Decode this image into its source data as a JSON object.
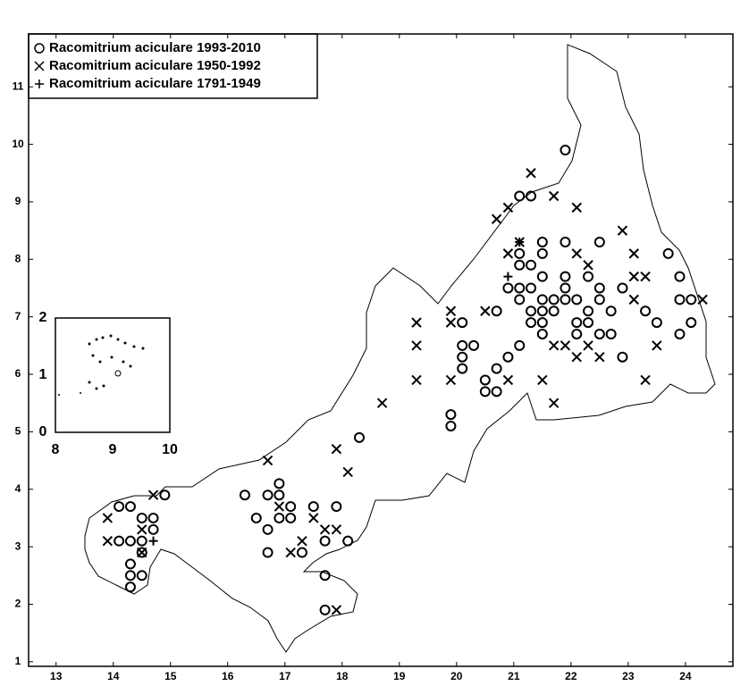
{
  "chart_data": [
    {
      "type": "scatter",
      "legend": "upper left",
      "xlim": [
        12.52,
        24.83
      ],
      "ylim": [
        0.92,
        11.92
      ],
      "xticks": [
        13,
        14,
        15,
        16,
        17,
        18,
        19,
        20,
        21,
        22,
        23,
        24
      ],
      "yticks": [
        1,
        2,
        3,
        4,
        5,
        6,
        7,
        8,
        9,
        10,
        11
      ],
      "series": [
        {
          "name": "Racomitrium aciculare 1993-2010",
          "color": "#000000",
          "marker": "circle",
          "x": [
            21.9,
            21.1,
            21.3,
            21.5,
            21.9,
            22.5,
            21.1,
            21.5,
            23.7,
            21.1,
            21.3,
            21.5,
            21.9,
            22.3,
            23.9,
            20.9,
            21.1,
            21.3,
            21.9,
            22.5,
            22.9,
            21.1,
            21.5,
            21.7,
            21.9,
            22.1,
            22.5,
            23.9,
            24.1,
            21.3,
            21.5,
            21.7,
            22.3,
            22.7,
            23.3,
            20.7,
            21.3,
            21.5,
            22.1,
            22.3,
            23.5,
            24.1,
            21.5,
            22.1,
            22.5,
            22.7,
            23.9,
            20.1,
            20.1,
            20.3,
            21.1,
            20.1,
            20.9,
            22.9,
            20.1,
            20.7,
            20.5,
            20.5,
            20.7,
            19.9,
            19.9,
            18.3,
            16.9,
            14.9,
            16.3,
            16.7,
            16.9,
            14.1,
            14.3,
            17.1,
            17.5,
            17.9,
            14.5,
            14.7,
            16.5,
            16.9,
            17.1,
            14.7,
            16.7,
            14.1,
            14.3,
            14.5,
            17.7,
            18.1,
            16.7,
            17.3,
            14.5,
            14.3,
            14.3,
            14.5,
            17.7,
            14.3,
            17.7
          ],
          "values": [
            9.9,
            9.1,
            9.1,
            8.3,
            8.3,
            8.3,
            8.1,
            8.1,
            8.1,
            7.9,
            7.9,
            7.7,
            7.7,
            7.7,
            7.7,
            7.5,
            7.5,
            7.5,
            7.5,
            7.5,
            7.5,
            7.3,
            7.3,
            7.3,
            7.3,
            7.3,
            7.3,
            7.3,
            7.3,
            7.1,
            7.1,
            7.1,
            7.1,
            7.1,
            7.1,
            7.1,
            6.9,
            6.9,
            6.9,
            6.9,
            6.9,
            6.9,
            6.7,
            6.7,
            6.7,
            6.7,
            6.7,
            6.9,
            6.5,
            6.5,
            6.5,
            6.3,
            6.3,
            6.3,
            6.1,
            6.1,
            5.9,
            5.7,
            5.7,
            5.3,
            5.1,
            4.9,
            4.1,
            3.9,
            3.9,
            3.9,
            3.9,
            3.7,
            3.7,
            3.7,
            3.7,
            3.7,
            3.5,
            3.5,
            3.5,
            3.5,
            3.5,
            3.3,
            3.3,
            3.1,
            3.1,
            3.1,
            3.1,
            3.1,
            2.9,
            2.9,
            2.9,
            2.7,
            2.5,
            2.5,
            2.5,
            2.3,
            1.9
          ]
        },
        {
          "name": "Racomitrium aciculare 1950-1992",
          "color": "#000000",
          "marker": "x",
          "x": [
            21.3,
            21.7,
            22.1,
            20.9,
            20.7,
            22.9,
            21.1,
            20.9,
            23.1,
            22.1,
            22.3,
            23.3,
            23.1,
            24.3,
            23.1,
            19.9,
            20.5,
            19.9,
            19.3,
            19.3,
            21.9,
            21.7,
            22.3,
            23.5,
            22.1,
            22.5,
            19.3,
            19.9,
            20.9,
            21.5,
            23.3,
            21.7,
            18.7,
            17.9,
            18.1,
            16.7,
            14.7,
            13.9,
            13.9,
            16.9,
            14.5,
            17.5,
            17.7,
            17.3,
            17.9,
            17.1,
            14.5,
            17.9
          ],
          "values": [
            9.5,
            9.1,
            8.9,
            8.9,
            8.7,
            8.5,
            8.3,
            8.1,
            8.1,
            8.1,
            7.9,
            7.7,
            7.7,
            7.3,
            7.3,
            7.1,
            7.1,
            6.9,
            6.9,
            6.5,
            6.5,
            6.5,
            6.5,
            6.5,
            6.3,
            6.3,
            5.9,
            5.9,
            5.9,
            5.9,
            5.9,
            5.5,
            5.5,
            4.7,
            4.3,
            4.5,
            3.9,
            3.5,
            3.1,
            3.7,
            3.3,
            3.5,
            3.3,
            3.1,
            3.3,
            2.9,
            2.9,
            1.9
          ]
        },
        {
          "name": "Racomitrium aciculare 1791-1949",
          "color": "#000000",
          "marker": "plus",
          "x": [
            21.1,
            20.9,
            14.7
          ],
          "values": [
            8.3,
            7.7,
            3.1
          ]
        }
      ]
    },
    {
      "type": "inset",
      "xlim": [
        8,
        10
      ],
      "ylim": [
        0,
        2
      ],
      "xticks": [
        8,
        9,
        10
      ],
      "yticks": [
        0,
        1,
        2
      ]
    }
  ]
}
